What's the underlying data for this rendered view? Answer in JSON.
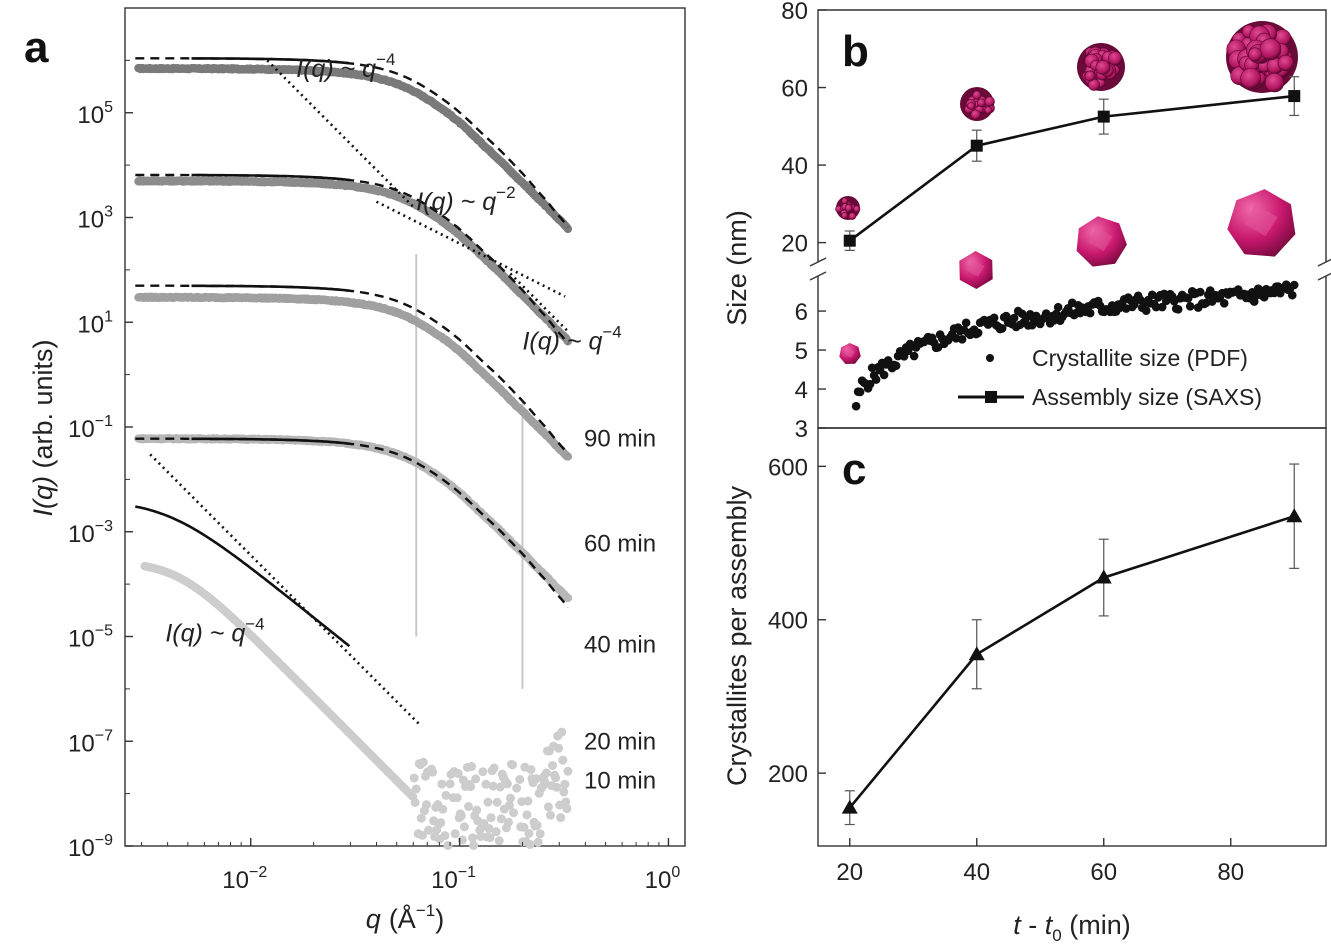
{
  "chart_data": [
    {
      "panel": "a",
      "type": "scatter",
      "xscale": "log",
      "yscale": "log",
      "xlabel": {
        "var": "q",
        "unit_prefix": "(Å",
        "unit_exp": "−1",
        "unit_suffix": ")"
      },
      "ylabel": {
        "var": "I(q)",
        "rest": " (arb. units)"
      },
      "xlim": [
        0.0025,
        1.2
      ],
      "ylim": [
        1e-09,
        10000000.0
      ],
      "xticks": [
        {
          "value": 0.01,
          "base": "10",
          "exp": "−2"
        },
        {
          "value": 0.1,
          "base": "10",
          "exp": "−1"
        },
        {
          "value": 1,
          "base": "10",
          "exp": "0"
        }
      ],
      "yticks": [
        {
          "value": 100000.0,
          "base": "10",
          "exp": "5"
        },
        {
          "value": 1000.0,
          "base": "10",
          "exp": "3"
        },
        {
          "value": 10,
          "base": "10",
          "exp": "1"
        },
        {
          "value": 0.1,
          "base": "10",
          "exp": "−1"
        },
        {
          "value": 0.001,
          "base": "10",
          "exp": "−3"
        },
        {
          "value": 1e-05,
          "base": "10",
          "exp": "−5"
        },
        {
          "value": 1e-07,
          "base": "10",
          "exp": "−7"
        },
        {
          "value": 1e-09,
          "base": "10",
          "exp": "−9"
        }
      ],
      "series": [
        {
          "name": "90 min",
          "color": "#7a7a7a",
          "plateau": 700000.0,
          "fit_plateau": 1100000.0,
          "label_at": [
            0.34,
            0.06
          ]
        },
        {
          "name": "60 min",
          "color": "#8c8c8c",
          "plateau": 5000.0,
          "fit_plateau": 6500.0,
          "label_at": [
            0.34,
            0.0006
          ]
        },
        {
          "name": "40 min",
          "color": "#a0a0a0",
          "plateau": 30,
          "fit_plateau": 50,
          "label_at": [
            0.34,
            7e-06
          ]
        },
        {
          "name": "20 min",
          "color": "#b7b7b7",
          "plateau": 0.06,
          "fit_plateau": 0.06,
          "label_at": [
            0.34,
            1e-07
          ]
        },
        {
          "name": "10 min",
          "color": "#cdcdcd",
          "plateau": 0.0003,
          "fit_plateau": 0.004,
          "label_at": [
            0.34,
            1.8e-08
          ]
        }
      ],
      "guide_lines": [
        {
          "q": 0.062,
          "from": 1e-05,
          "to": 200
        },
        {
          "q": 0.2,
          "from": 1e-06,
          "to": 0.3
        }
      ],
      "annotations": [
        {
          "text": "I(q) ~ q",
          "exp": "−4",
          "at": [
            0.0165,
            480000.0
          ]
        },
        {
          "text": "I(q) ~ q",
          "exp": "−2",
          "at": [
            0.062,
            1400
          ]
        },
        {
          "text": "I(q) ~ q",
          "exp": "−4",
          "at": [
            0.2,
            3
          ]
        },
        {
          "text": "I(q) ~ q",
          "exp": "−4",
          "at": [
            0.0039,
            8e-06
          ]
        }
      ],
      "slope_lines": [
        {
          "slope": -4,
          "x": [
            0.012,
            0.06
          ],
          "y": [
            1000000.0,
            1600
          ]
        },
        {
          "slope": -2,
          "x": [
            0.04,
            0.32
          ],
          "y": [
            2000,
            31
          ]
        },
        {
          "slope": -4,
          "x": [
            0.175,
            0.33
          ],
          "y": [
            85,
            6.7
          ]
        },
        {
          "slope": -4,
          "x": [
            0.0033,
            0.065
          ],
          "y": [
            0.03,
            2e-07
          ]
        }
      ]
    },
    {
      "panel": "b",
      "type": "line",
      "ylabel": "Size (nm)",
      "ybreak": true,
      "upper_ylim": [
        15,
        80
      ],
      "upper_yticks": [
        20,
        40,
        60,
        80
      ],
      "lower_ylim": [
        3,
        6.9
      ],
      "lower_yticks": [
        3,
        4,
        5,
        6
      ],
      "xlim": [
        15,
        95
      ],
      "series": [
        {
          "name": "Assembly size (SAXS)",
          "marker": "square",
          "x": [
            20,
            40,
            60,
            90
          ],
          "y": [
            20.5,
            45,
            52.5,
            57.8
          ],
          "yerr": [
            2.5,
            4,
            4.5,
            5
          ]
        },
        {
          "name": "Crystallite size (PDF)",
          "marker": "circle",
          "x": [
            21,
            22,
            24,
            27,
            30,
            35,
            40,
            45,
            50,
            55,
            60,
            65,
            70,
            75,
            80,
            85,
            90
          ],
          "y": [
            3.6,
            4.1,
            4.4,
            4.7,
            5.0,
            5.3,
            5.6,
            5.75,
            5.85,
            6.0,
            6.1,
            6.2,
            6.25,
            6.3,
            6.35,
            6.45,
            6.55
          ]
        }
      ],
      "legend": {
        "position": "lower-right",
        "entries": [
          "Crystallite size (PDF)",
          "Assembly size (SAXS)"
        ]
      }
    },
    {
      "panel": "c",
      "type": "line",
      "ylabel": "Crystallites per assembly",
      "xlabel": {
        "var": "t",
        "mid": " - ",
        "var2": "t",
        "sub": "0",
        "unit": " (min)"
      },
      "xlim": [
        15,
        95
      ],
      "xticks": [
        20,
        40,
        60,
        80
      ],
      "ylim": [
        105,
        650
      ],
      "yticks": [
        200,
        400,
        600
      ],
      "series": [
        {
          "name": "Crystallites per assembly",
          "marker": "triangle",
          "x": [
            20,
            40,
            60,
            90
          ],
          "y": [
            155,
            355,
            455,
            535
          ],
          "yerr": [
            22,
            45,
            50,
            68
          ]
        }
      ]
    }
  ],
  "figure": {
    "panel_letters": [
      "a",
      "b",
      "c"
    ],
    "accent": "#c8186e"
  }
}
